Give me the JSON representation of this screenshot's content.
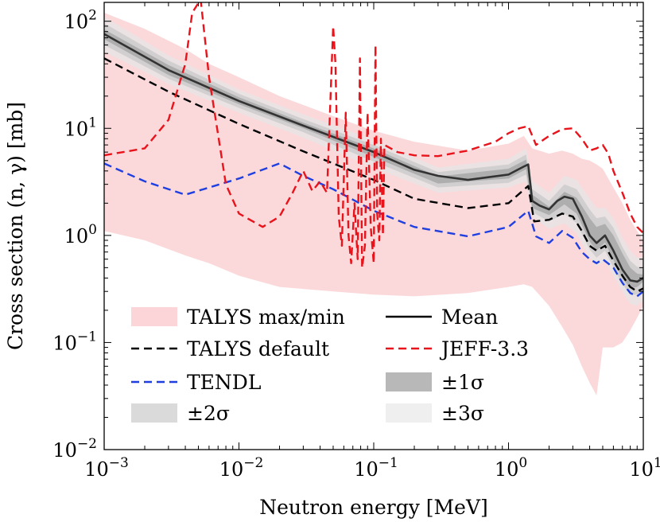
{
  "chart_data": {
    "type": "line",
    "xlabel": "Neutron energy [MeV]",
    "ylabel": "Cross section (n, γ) [mb]",
    "x_scale": "log",
    "y_scale": "log",
    "xlim": [
      0.001,
      10
    ],
    "ylim": [
      0.01,
      150
    ],
    "legend_position": "bottom-left",
    "grid": false,
    "x_ticks": [
      {
        "value": 0.001,
        "base": "10",
        "exp": "−3"
      },
      {
        "value": 0.01,
        "base": "10",
        "exp": "−2"
      },
      {
        "value": 0.1,
        "base": "10",
        "exp": "−1"
      },
      {
        "value": 1,
        "base": "10",
        "exp": "0"
      },
      {
        "value": 10,
        "base": "10",
        "exp": "1"
      }
    ],
    "y_ticks": [
      {
        "value": 0.01,
        "base": "10",
        "exp": "−2"
      },
      {
        "value": 0.1,
        "base": "10",
        "exp": "−1"
      },
      {
        "value": 1,
        "base": "10",
        "exp": "0"
      },
      {
        "value": 10,
        "base": "10",
        "exp": "1"
      },
      {
        "value": 100,
        "base": "10",
        "exp": "2"
      }
    ],
    "bands": [
      {
        "name": "TALYS max/min",
        "color": "#fbd5d7",
        "x": [
          0.001,
          0.002,
          0.004,
          0.006,
          0.01,
          0.02,
          0.05,
          0.1,
          0.2,
          0.5,
          1.0,
          1.3,
          1.5,
          2.0,
          2.5,
          3.0,
          3.5,
          4.0,
          4.5,
          5.0,
          6.0,
          7.0,
          8.0,
          9.0,
          10.0
        ],
        "lower": [
          1.1,
          0.9,
          0.65,
          0.55,
          0.42,
          0.33,
          0.3,
          0.28,
          0.27,
          0.29,
          0.33,
          0.35,
          0.33,
          0.22,
          0.14,
          0.095,
          0.06,
          0.042,
          0.032,
          0.09,
          0.09,
          0.1,
          0.13,
          0.17,
          0.22
        ],
        "upper": [
          120,
          85,
          55,
          40,
          30,
          20,
          13,
          9.5,
          7.5,
          6.2,
          7.2,
          8.5,
          6.5,
          5.8,
          6.2,
          5.8,
          5.2,
          5.0,
          4.6,
          4.2,
          2.8,
          2.0,
          1.4,
          1.1,
          0.9
        ]
      },
      {
        "name": "±3σ",
        "color": "#e6e6e6",
        "x": [
          0.001,
          0.003,
          0.01,
          0.03,
          0.1,
          0.3,
          1.0,
          1.35,
          1.5,
          2.0,
          2.6,
          3.2,
          4.0,
          4.5,
          5.2,
          6.0,
          7.0,
          8.0,
          9.0,
          10.0
        ],
        "lower": [
          52,
          26,
          14,
          8.2,
          4.3,
          2.5,
          2.8,
          3.2,
          1.5,
          1.15,
          1.3,
          1.05,
          0.62,
          0.52,
          0.58,
          0.42,
          0.3,
          0.23,
          0.22,
          0.25
        ],
        "upper": [
          110,
          48,
          23,
          13.5,
          7.8,
          4.3,
          5.2,
          6.5,
          3.2,
          2.5,
          3.6,
          3.3,
          2.2,
          1.8,
          1.8,
          1.45,
          0.95,
          0.72,
          0.62,
          0.62
        ]
      },
      {
        "name": "±2σ",
        "color": "#c8c8c8",
        "x": [
          0.001,
          0.003,
          0.01,
          0.03,
          0.1,
          0.3,
          1.0,
          1.35,
          1.5,
          2.0,
          2.6,
          3.2,
          4.0,
          4.5,
          5.2,
          6.0,
          7.0,
          8.0,
          9.0,
          10.0
        ],
        "lower": [
          60,
          29,
          15.5,
          9.2,
          4.9,
          2.8,
          3.1,
          3.7,
          1.65,
          1.35,
          1.6,
          1.3,
          0.74,
          0.62,
          0.72,
          0.5,
          0.35,
          0.28,
          0.28,
          0.31
        ],
        "upper": [
          96,
          43,
          21,
          12.2,
          7.0,
          3.9,
          4.6,
          5.7,
          2.7,
          2.1,
          3.0,
          2.7,
          1.75,
          1.45,
          1.5,
          1.18,
          0.78,
          0.58,
          0.51,
          0.5
        ]
      },
      {
        "name": "±1σ",
        "color": "#a3a3a3",
        "x": [
          0.001,
          0.003,
          0.01,
          0.03,
          0.1,
          0.3,
          1.0,
          1.35,
          1.5,
          2.0,
          2.6,
          3.2,
          4.0,
          4.5,
          5.2,
          6.0,
          7.0,
          8.0,
          9.0,
          10.0
        ],
        "lower": [
          68,
          31.5,
          16.8,
          10.0,
          5.4,
          3.05,
          3.4,
          4.15,
          1.8,
          1.55,
          1.95,
          1.6,
          0.88,
          0.72,
          0.86,
          0.59,
          0.4,
          0.32,
          0.33,
          0.37
        ],
        "upper": [
          84,
          39,
          19.5,
          11.3,
          6.5,
          3.55,
          4.2,
          5.1,
          2.4,
          1.85,
          2.55,
          2.25,
          1.45,
          1.2,
          1.28,
          1.0,
          0.68,
          0.5,
          0.44,
          0.43
        ]
      }
    ],
    "series": [
      {
        "name": "Mean",
        "color": "#333333",
        "dash": "solid",
        "x": [
          0.001,
          0.003,
          0.01,
          0.03,
          0.1,
          0.2,
          0.3,
          0.5,
          1.0,
          1.3,
          1.4,
          1.5,
          1.7,
          2.0,
          2.3,
          2.6,
          3.0,
          3.5,
          4.0,
          4.5,
          5.2,
          6.0,
          7.0,
          8.0,
          9.0,
          10.0
        ],
        "y": [
          76,
          35,
          18,
          10.6,
          6.0,
          4.1,
          3.6,
          3.3,
          3.7,
          4.4,
          4.6,
          2.1,
          1.9,
          1.75,
          2.1,
          2.3,
          2.2,
          1.5,
          1.0,
          0.85,
          1.0,
          0.72,
          0.48,
          0.38,
          0.37,
          0.4
        ]
      },
      {
        "name": "TALYS default",
        "color": "#000000",
        "dash": "dashed",
        "x": [
          0.001,
          0.003,
          0.01,
          0.03,
          0.1,
          0.2,
          0.5,
          1.0,
          1.4,
          1.55,
          2.0,
          2.5,
          3.0,
          3.5,
          4.0,
          4.5,
          5.2,
          6.0,
          7.0,
          8.0,
          9.0,
          10.0
        ],
        "y": [
          45,
          22,
          11,
          6.1,
          3.3,
          2.2,
          1.8,
          2.0,
          2.9,
          1.35,
          1.4,
          1.6,
          1.5,
          1.1,
          0.8,
          0.72,
          0.8,
          0.58,
          0.42,
          0.33,
          0.3,
          0.32
        ]
      },
      {
        "name": "TENDL",
        "color": "#1f3fe0",
        "dash": "dashed",
        "x": [
          0.001,
          0.002,
          0.004,
          0.01,
          0.02,
          0.03,
          0.05,
          0.1,
          0.2,
          0.5,
          1.0,
          1.4,
          1.6,
          2.0,
          2.5,
          3.0,
          3.5,
          4.0,
          4.5,
          5.0,
          6.0,
          7.0,
          8.0,
          9.0,
          10.0
        ],
        "y": [
          4.7,
          3.2,
          2.4,
          3.4,
          4.7,
          3.6,
          2.7,
          1.7,
          1.2,
          0.98,
          1.2,
          1.7,
          0.98,
          0.85,
          1.1,
          0.95,
          0.7,
          0.6,
          0.55,
          0.6,
          0.5,
          0.36,
          0.29,
          0.27,
          0.3
        ]
      },
      {
        "name": "JEFF-3.3",
        "color": "#e8131b",
        "dash": "dashed",
        "x": [
          0.001,
          0.002,
          0.003,
          0.004,
          0.0045,
          0.0052,
          0.006,
          0.008,
          0.01,
          0.015,
          0.02,
          0.025,
          0.03,
          0.035,
          0.04,
          0.045,
          0.05,
          0.052,
          0.055,
          0.058,
          0.062,
          0.065,
          0.068,
          0.072,
          0.076,
          0.079,
          0.082,
          0.086,
          0.09,
          0.095,
          0.1,
          0.103,
          0.106,
          0.11,
          0.113,
          0.117,
          0.12,
          0.15,
          0.2,
          0.3,
          0.5,
          0.8,
          1.0,
          1.2,
          1.4,
          1.6,
          2.0,
          2.5,
          3.0,
          3.5,
          4.0,
          4.5,
          5.0,
          5.5,
          6.0,
          7.0,
          8.0,
          9.0,
          10.0
        ],
        "y": [
          5.6,
          6.5,
          12,
          40,
          120,
          160,
          30,
          3.0,
          1.6,
          1.2,
          1.5,
          2.5,
          4.0,
          2.6,
          3.2,
          2.5,
          90,
          40,
          1.5,
          0.8,
          14,
          1.0,
          0.55,
          2.0,
          0.6,
          45,
          0.5,
          0.8,
          14,
          1.2,
          0.55,
          60,
          1.6,
          0.9,
          8,
          1.0,
          7.0,
          6.0,
          5.6,
          5.5,
          6.2,
          7.5,
          9.0,
          10.0,
          10.5,
          7.0,
          8.5,
          9.8,
          10.0,
          8.0,
          6.2,
          6.5,
          7.0,
          5.8,
          4.0,
          2.5,
          1.6,
          1.2,
          1.05
        ]
      }
    ],
    "legend": [
      {
        "label": "TALYS max/min",
        "kind": "band",
        "color": "#fbd5d7"
      },
      {
        "label": "Mean",
        "kind": "line",
        "color": "#000000",
        "dash": "solid"
      },
      {
        "label": "TALYS default",
        "kind": "line",
        "color": "#000000",
        "dash": "dashed"
      },
      {
        "label": "JEFF-3.3",
        "kind": "line",
        "color": "#e8131b",
        "dash": "dashed"
      },
      {
        "label": "TENDL",
        "kind": "line",
        "color": "#1f3fe0",
        "dash": "dashed"
      },
      {
        "label": "±1σ",
        "kind": "band",
        "color": "#b8b8b8"
      },
      {
        "label": "±2σ",
        "kind": "band",
        "color": "#dadada"
      },
      {
        "label": "±3σ",
        "kind": "band",
        "color": "#efefef"
      }
    ]
  }
}
